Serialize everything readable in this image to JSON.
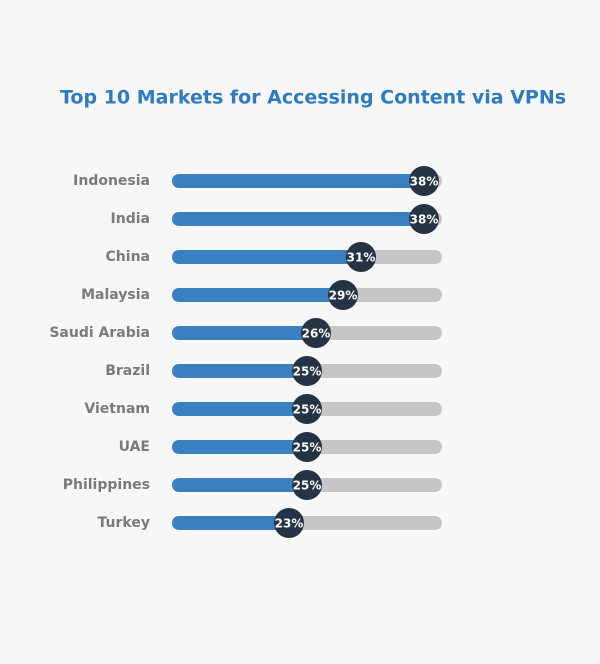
{
  "chart_data": {
    "type": "bar",
    "orientation": "horizontal",
    "title": "Top 10 Markets for Accessing Content via VPNs",
    "categories": [
      "Indonesia",
      "India",
      "China",
      "Malaysia",
      "Saudi Arabia",
      "Brazil",
      "Vietnam",
      "UAE",
      "Philippines",
      "Turkey"
    ],
    "values": [
      38,
      38,
      31,
      29,
      26,
      25,
      25,
      25,
      25,
      23
    ],
    "value_labels": [
      "38%",
      "38%",
      "31%",
      "29%",
      "26%",
      "25%",
      "25%",
      "25%",
      "25%",
      "23%"
    ],
    "color": "#3a80c0",
    "xlim": [
      10,
      40
    ]
  }
}
